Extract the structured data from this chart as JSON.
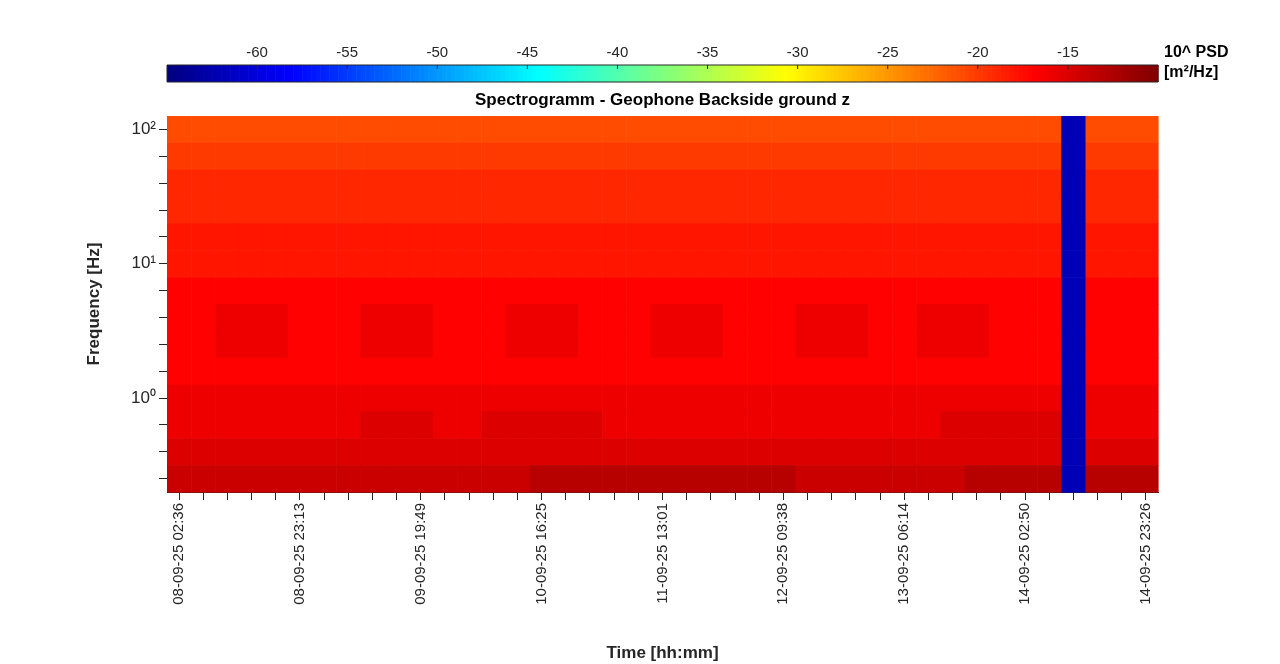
{
  "chart_data": {
    "type": "heatmap",
    "title": "Spectrogramm - Geophone Backside ground z",
    "xlabel": "Time [hh:mm]",
    "ylabel": "Frequency [Hz]",
    "clabel": "10^ PSD [m²/Hz]",
    "categories": [
      "08-09-25 02:36",
      null,
      null,
      null,
      null,
      "08-09-25 23:13",
      null,
      null,
      null,
      null,
      "09-09-25 19:49",
      null,
      null,
      null,
      null,
      "10-09-25 16:25",
      null,
      null,
      null,
      null,
      "11-09-25 13:01",
      null,
      null,
      null,
      null,
      "12-09-25 09:38",
      null,
      null,
      null,
      null,
      "13-09-25 06:14",
      null,
      null,
      null,
      null,
      "14-09-25 02:50",
      null,
      null,
      null,
      null,
      "14-09-25 23:26"
    ],
    "y_categories": [
      "10²",
      null,
      null,
      null,
      null,
      "10¹",
      null,
      null,
      null,
      null,
      "10⁰",
      null,
      null,
      null
    ],
    "cells": [
      [
        -21,
        -21,
        -21,
        -21,
        -21,
        -21,
        -21,
        -21,
        -21,
        -21,
        -21,
        -21,
        -21,
        -21,
        -21,
        -21,
        -21,
        -21,
        -21,
        -21,
        -21,
        -21,
        -21,
        -21,
        -21,
        -21,
        -21,
        -21,
        -21,
        -21,
        -21,
        -21,
        -21,
        -21,
        -21,
        -21,
        -21,
        -62,
        -21,
        -21,
        -21
      ],
      [
        -20,
        -20,
        -20,
        -20,
        -20,
        -20,
        -20,
        -20,
        -20,
        -20,
        -20,
        -20,
        -20,
        -20,
        -20,
        -20,
        -20,
        -20,
        -20,
        -20,
        -20,
        -20,
        -20,
        -20,
        -20,
        -20,
        -20,
        -20,
        -20,
        -20,
        -20,
        -20,
        -20,
        -20,
        -20,
        -20,
        -20,
        -62,
        -20,
        -20,
        -20
      ],
      [
        -19,
        -19,
        -19,
        -19,
        -19,
        -19,
        -19,
        -19,
        -19,
        -19,
        -19,
        -19,
        -19,
        -19,
        -19,
        -19,
        -19,
        -19,
        -19,
        -19,
        -19,
        -19,
        -19,
        -19,
        -19,
        -19,
        -19,
        -19,
        -19,
        -19,
        -19,
        -19,
        -19,
        -19,
        -19,
        -19,
        -19,
        -62,
        -19,
        -19,
        -19
      ],
      [
        -19,
        -19,
        -19,
        -19,
        -19,
        -19,
        -19,
        -19,
        -19,
        -19,
        -19,
        -19,
        -19,
        -19,
        -19,
        -19,
        -19,
        -19,
        -19,
        -19,
        -19,
        -19,
        -19,
        -19,
        -19,
        -19,
        -19,
        -19,
        -19,
        -19,
        -19,
        -19,
        -19,
        -19,
        -19,
        -19,
        -19,
        -62,
        -19,
        -19,
        -19
      ],
      [
        -18,
        -18,
        -18,
        -18,
        -18,
        -18,
        -18,
        -18,
        -18,
        -18,
        -18,
        -18,
        -18,
        -18,
        -18,
        -18,
        -18,
        -18,
        -18,
        -18,
        -18,
        -18,
        -18,
        -18,
        -18,
        -18,
        -18,
        -18,
        -18,
        -18,
        -18,
        -18,
        -18,
        -18,
        -18,
        -18,
        -18,
        -62,
        -18,
        -18,
        -18
      ],
      [
        -18,
        -18,
        -18,
        -18,
        -18,
        -18,
        -18,
        -18,
        -18,
        -18,
        -18,
        -18,
        -18,
        -18,
        -18,
        -18,
        -18,
        -18,
        -18,
        -18,
        -18,
        -18,
        -18,
        -18,
        -18,
        -18,
        -18,
        -18,
        -18,
        -18,
        -18,
        -18,
        -18,
        -18,
        -18,
        -18,
        -18,
        -62,
        -18,
        -18,
        -18
      ],
      [
        -17,
        -17,
        -17,
        -17,
        -17,
        -17,
        -17,
        -17,
        -17,
        -17,
        -17,
        -17,
        -17,
        -17,
        -17,
        -17,
        -17,
        -17,
        -17,
        -17,
        -17,
        -17,
        -17,
        -17,
        -17,
        -17,
        -17,
        -17,
        -17,
        -17,
        -17,
        -17,
        -17,
        -17,
        -17,
        -17,
        -17,
        -62,
        -17,
        -17,
        -17
      ],
      [
        -17,
        -17,
        -16,
        -16,
        -16,
        -17,
        -17,
        -17,
        -16,
        -16,
        -16,
        -17,
        -17,
        -17,
        -16,
        -16,
        -16,
        -17,
        -17,
        -17,
        -16,
        -16,
        -16,
        -17,
        -17,
        -17,
        -16,
        -16,
        -16,
        -17,
        -17,
        -16,
        -16,
        -16,
        -17,
        -17,
        -17,
        -62,
        -17,
        -17,
        -17
      ],
      [
        -17,
        -17,
        -16,
        -16,
        -16,
        -17,
        -17,
        -17,
        -16,
        -16,
        -16,
        -17,
        -17,
        -17,
        -16,
        -16,
        -16,
        -17,
        -17,
        -17,
        -16,
        -16,
        -16,
        -17,
        -17,
        -17,
        -16,
        -16,
        -16,
        -17,
        -17,
        -16,
        -16,
        -16,
        -17,
        -17,
        -17,
        -62,
        -17,
        -17,
        -17
      ],
      [
        -17,
        -17,
        -17,
        -17,
        -17,
        -17,
        -17,
        -17,
        -17,
        -17,
        -17,
        -17,
        -17,
        -17,
        -17,
        -17,
        -17,
        -17,
        -17,
        -17,
        -17,
        -17,
        -17,
        -17,
        -17,
        -17,
        -17,
        -17,
        -17,
        -17,
        -17,
        -17,
        -17,
        -17,
        -17,
        -17,
        -17,
        -62,
        -17,
        -17,
        -17
      ],
      [
        -16,
        -16,
        -16,
        -16,
        -16,
        -16,
        -16,
        -16,
        -16,
        -16,
        -16,
        -16,
        -16,
        -16,
        -16,
        -16,
        -16,
        -16,
        -16,
        -16,
        -16,
        -16,
        -16,
        -16,
        -16,
        -16,
        -16,
        -16,
        -16,
        -16,
        -16,
        -16,
        -16,
        -16,
        -16,
        -16,
        -16,
        -62,
        -16,
        -16,
        -16
      ],
      [
        -16,
        -16,
        -16,
        -16,
        -16,
        -16,
        -16,
        -16,
        -15,
        -15,
        -15,
        -16,
        -16,
        -15,
        -15,
        -15,
        -15,
        -15,
        -16,
        -16,
        -16,
        -16,
        -16,
        -16,
        -16,
        -16,
        -16,
        -16,
        -16,
        -16,
        -16,
        -16,
        -15,
        -15,
        -15,
        -15,
        -15,
        -62,
        -16,
        -16,
        -16
      ],
      [
        -15,
        -15,
        -15,
        -15,
        -15,
        -15,
        -15,
        -15,
        -15,
        -15,
        -15,
        -15,
        -15,
        -15,
        -15,
        -15,
        -15,
        -15,
        -15,
        -15,
        -15,
        -15,
        -15,
        -15,
        -15,
        -15,
        -15,
        -15,
        -15,
        -15,
        -15,
        -15,
        -15,
        -15,
        -15,
        -15,
        -15,
        -62,
        -15,
        -15,
        -15
      ],
      [
        -14,
        -14,
        -14,
        -14,
        -14,
        -14,
        -14,
        -14,
        -14,
        -14,
        -14,
        -14,
        -14,
        -14,
        -14,
        -13,
        -13,
        -13,
        -13,
        -13,
        -13,
        -13,
        -13,
        -13,
        -13,
        -13,
        -14,
        -14,
        -14,
        -14,
        -14,
        -14,
        -14,
        -13,
        -13,
        -13,
        -13,
        -62,
        -13,
        -13,
        -13
      ]
    ],
    "clim": [
      -65,
      -10
    ],
    "cticks": [
      -60,
      -55,
      -50,
      -45,
      -40,
      -35,
      -30,
      -25,
      -20,
      -15
    ]
  }
}
